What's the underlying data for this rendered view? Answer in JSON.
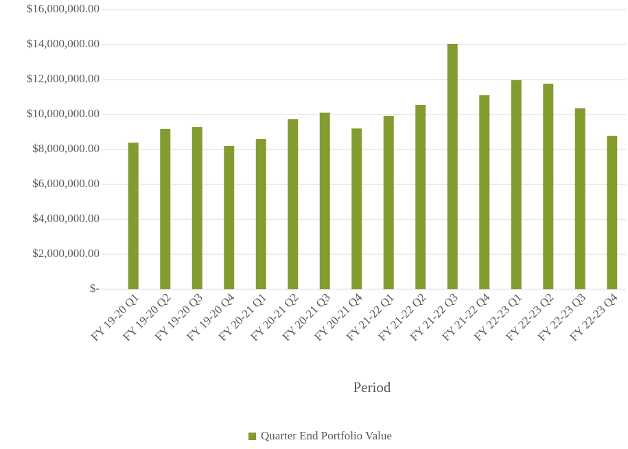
{
  "chart_data": {
    "type": "bar",
    "x_label": "Period",
    "categories": [
      "FY 19-20 Q1",
      "FY 19-20 Q2",
      "FY 19-20 Q3",
      "FY 19-20 Q4",
      "FY 20-21 Q1",
      "FY 20-21 Q2",
      "FY 20-21 Q3",
      "FY 20-21 Q4",
      "FY 21-22 Q1",
      "FY 21-22 Q2",
      "FY 21-22 Q3",
      "FY 21-22 Q4",
      "FY 22-23 Q1",
      "FY 22-23 Q2",
      "FY 22-23 Q3",
      "FY 22-23 Q4"
    ],
    "series": [
      {
        "name": "Quarter End Portfolio Value",
        "color": "#849b2f",
        "values": [
          8390000,
          9180000,
          9290000,
          8200000,
          8590000,
          9730000,
          10100000,
          9200000,
          9920000,
          10550000,
          14040000,
          11100000,
          11960000,
          11760000,
          10350000,
          8780000
        ]
      }
    ],
    "ylim": [
      0,
      16000000
    ],
    "yticks": [
      {
        "value": 0,
        "label": "$-"
      },
      {
        "value": 2000000,
        "label": "$2,000,000.00"
      },
      {
        "value": 4000000,
        "label": "$4,000,000.00"
      },
      {
        "value": 6000000,
        "label": "$6,000,000.00"
      },
      {
        "value": 8000000,
        "label": "$8,000,000.00"
      },
      {
        "value": 10000000,
        "label": "$10,000,000.00"
      },
      {
        "value": 12000000,
        "label": "$12,000,000.00"
      },
      {
        "value": 14000000,
        "label": "$14,000,000.00"
      },
      {
        "value": 16000000,
        "label": "$16,000,000.00"
      }
    ],
    "grid": true,
    "legend": "bottom"
  }
}
